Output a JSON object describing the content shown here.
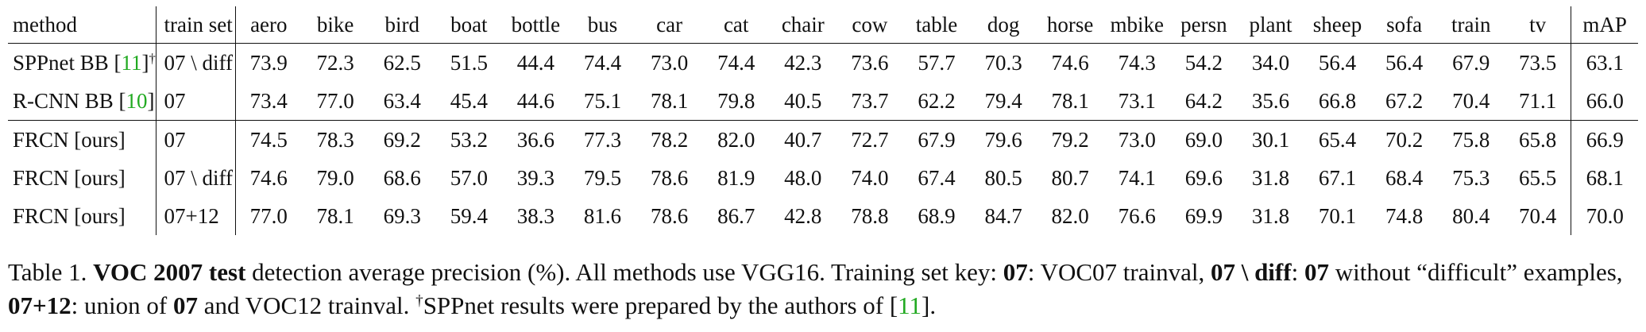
{
  "table": {
    "headers": [
      "method",
      "train set",
      "aero",
      "bike",
      "bird",
      "boat",
      "bottle",
      "bus",
      "car",
      "cat",
      "chair",
      "cow",
      "table",
      "dog",
      "horse",
      "mbike",
      "persn",
      "plant",
      "sheep",
      "sofa",
      "train",
      "tv",
      "mAP"
    ],
    "rows": [
      {
        "method": "SPPnet BB [",
        "cite": "11",
        "method_close": "]",
        "sup": "†",
        "train_set": "07 \\ diff",
        "values": [
          "73.9",
          "72.3",
          "62.5",
          "51.5",
          "44.4",
          "74.4",
          "73.0",
          "74.4",
          "42.3",
          "73.6",
          "57.7",
          "70.3",
          "74.6",
          "74.3",
          "54.2",
          "34.0",
          "56.4",
          "56.4",
          "67.9",
          "73.5",
          "63.1"
        ],
        "bold": []
      },
      {
        "method": "R-CNN BB [",
        "cite": "10",
        "method_close": "]",
        "sup": "",
        "train_set": "07",
        "values": [
          "73.4",
          "77.0",
          "63.4",
          "45.4",
          "44.6",
          "75.1",
          "78.1",
          "79.8",
          "40.5",
          "73.7",
          "62.2",
          "79.4",
          "78.1",
          "73.1",
          "64.2",
          "35.6",
          "66.8",
          "67.2",
          "70.4",
          "71.1",
          "66.0"
        ],
        "bold": [
          4,
          15,
          19
        ]
      },
      {
        "method": "FRCN [ours]",
        "cite": "",
        "method_close": "",
        "sup": "",
        "train_set": "07",
        "values": [
          "74.5",
          "78.3",
          "69.2",
          "53.2",
          "36.6",
          "77.3",
          "78.2",
          "82.0",
          "40.7",
          "72.7",
          "67.9",
          "79.6",
          "79.2",
          "73.0",
          "69.0",
          "30.1",
          "65.4",
          "70.2",
          "75.8",
          "65.8",
          "66.9"
        ],
        "bold": []
      },
      {
        "method": "FRCN [ours]",
        "cite": "",
        "method_close": "",
        "sup": "",
        "train_set": "07 \\ diff",
        "values": [
          "74.6",
          "79.0",
          "68.6",
          "57.0",
          "39.3",
          "79.5",
          "78.6",
          "81.9",
          "48.0",
          "74.0",
          "67.4",
          "80.5",
          "80.7",
          "74.1",
          "69.6",
          "31.8",
          "67.1",
          "68.4",
          "75.3",
          "65.5",
          "68.1"
        ],
        "bold": [
          1,
          6,
          8
        ]
      },
      {
        "method": "FRCN [ours]",
        "cite": "",
        "method_close": "",
        "sup": "",
        "train_set": "07+12",
        "values": [
          "77.0",
          "78.1",
          "69.3",
          "59.4",
          "38.3",
          "81.6",
          "78.6",
          "86.7",
          "42.8",
          "78.8",
          "68.9",
          "84.7",
          "82.0",
          "76.6",
          "69.9",
          "31.8",
          "70.1",
          "74.8",
          "80.4",
          "70.4",
          "70.0"
        ],
        "bold": [
          0,
          2,
          3,
          5,
          6,
          7,
          9,
          10,
          11,
          12,
          13,
          14,
          16,
          17,
          18,
          20
        ]
      }
    ]
  },
  "caption": {
    "label": "Table 1. ",
    "title": "VOC 2007 test",
    "t1": " detection average precision (%).  All methods use VGG16.  Training set key: ",
    "k1": "07",
    "t2": ": VOC07 trainval, ",
    "k2": "07 \\ diff",
    "t3": ": ",
    "k3": "07",
    "t4": " without “difficult” examples, ",
    "k4": "07+12",
    "t5": ": union of ",
    "k5": "07",
    "t6": " and VOC12 trainval. ",
    "dagger": "†",
    "t7": "SPPnet results were prepared by the authors of [",
    "cite": "11",
    "t8": "]."
  }
}
